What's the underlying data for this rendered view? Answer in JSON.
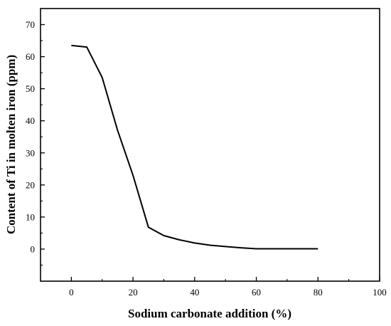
{
  "chart_data": {
    "type": "line",
    "title": "",
    "xlabel": "Sodium carbonate addition (%)",
    "ylabel": "Content of Ti in molten iron (ppm)",
    "xlim": [
      -10,
      100
    ],
    "ylim": [
      -10,
      75
    ],
    "x_ticks": [
      0,
      20,
      40,
      60,
      80,
      100
    ],
    "y_ticks": [
      0,
      10,
      20,
      30,
      40,
      50,
      60,
      70
    ],
    "grid": false,
    "legend": "none",
    "series": [
      {
        "color": "#000000",
        "x": [
          0,
          5,
          10,
          15,
          20,
          25,
          30,
          35,
          40,
          45,
          50,
          55,
          60,
          65,
          70,
          75,
          80
        ],
        "y": [
          63.5,
          63.0,
          53.5,
          37.0,
          23.0,
          6.8,
          4.2,
          2.9,
          1.9,
          1.2,
          0.8,
          0.4,
          0.1,
          0.1,
          0.1,
          0.1,
          0.1
        ]
      }
    ]
  }
}
